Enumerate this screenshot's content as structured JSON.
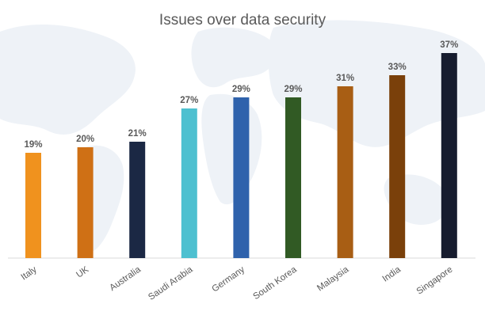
{
  "chart_data": {
    "type": "bar",
    "title": "Issues over data security",
    "xlabel": "",
    "ylabel": "",
    "ylim": [
      0,
      40
    ],
    "categories": [
      "Italy",
      "UK",
      "Australia",
      "Saudi Arabia",
      "Germany",
      "South Korea",
      "Malaysia",
      "India",
      "Singapore"
    ],
    "values": [
      19,
      20,
      21,
      27,
      29,
      29,
      31,
      33,
      37
    ],
    "value_labels": [
      "19%",
      "20%",
      "21%",
      "27%",
      "29%",
      "29%",
      "31%",
      "33%",
      "37%"
    ],
    "colors": [
      "#F0921E",
      "#CF7015",
      "#1B2844",
      "#4DC0D0",
      "#2F62AC",
      "#315A24",
      "#A85E14",
      "#7A400A",
      "#161C2E"
    ],
    "grid": false,
    "legend": "none"
  }
}
